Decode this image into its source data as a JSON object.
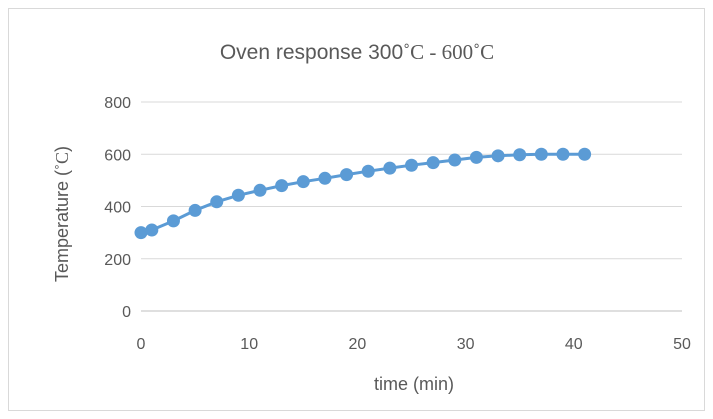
{
  "chart_data": {
    "type": "line",
    "title_parts": [
      "Oven response 300",
      "˚C - 600˚C"
    ],
    "xlabel": "time (min)",
    "ylabel_parts": [
      "Temperature (",
      "˚C",
      ")"
    ],
    "xlim": [
      0,
      50
    ],
    "ylim": [
      0,
      800
    ],
    "x_ticks": [
      0,
      10,
      20,
      30,
      40,
      50
    ],
    "y_ticks": [
      0,
      200,
      400,
      600,
      800
    ],
    "x_tick_labels": [
      "0",
      "10",
      "20",
      "30",
      "40",
      "50"
    ],
    "y_tick_labels": [
      "0",
      "200",
      "400",
      "600",
      "800"
    ],
    "grid": "horizontal",
    "legend": "none",
    "series": [
      {
        "color": "#5b9bd5",
        "marker": "circle",
        "x": [
          0,
          1,
          3,
          5,
          7,
          9,
          11,
          13,
          15,
          17,
          19,
          21,
          23,
          25,
          27,
          29,
          31,
          33,
          35,
          37,
          39,
          41
        ],
        "y": [
          300,
          310,
          345,
          385,
          418,
          443,
          462,
          480,
          495,
          508,
          522,
          535,
          547,
          558,
          568,
          578,
          588,
          594,
          598,
          600,
          600,
          600
        ]
      }
    ]
  }
}
